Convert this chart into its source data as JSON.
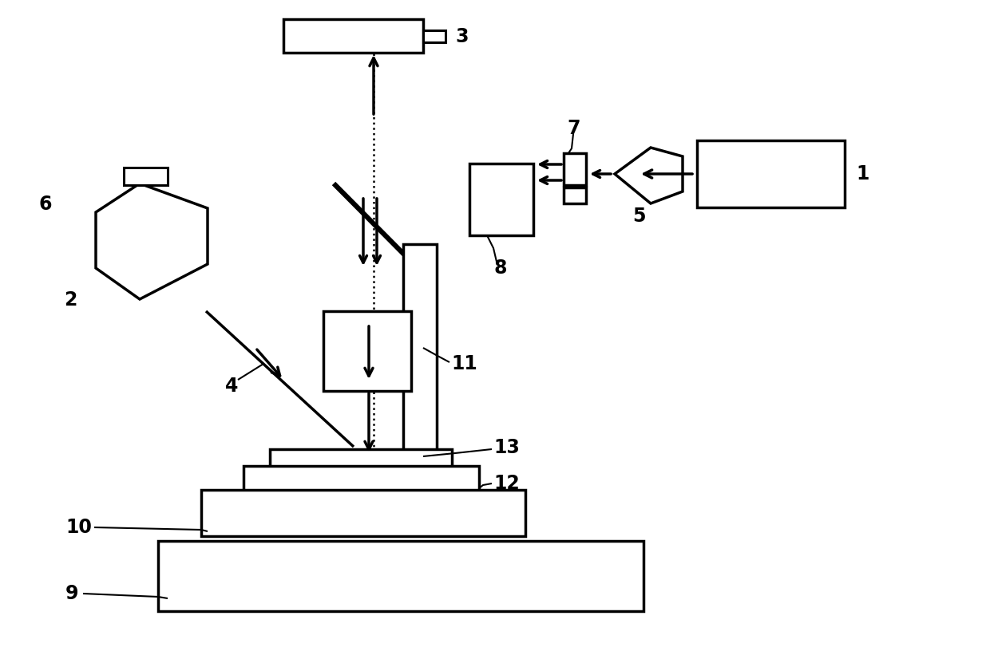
{
  "bg_color": "#ffffff",
  "line_color": "#000000",
  "fig_width": 12.4,
  "fig_height": 8.26,
  "dpi": 100
}
